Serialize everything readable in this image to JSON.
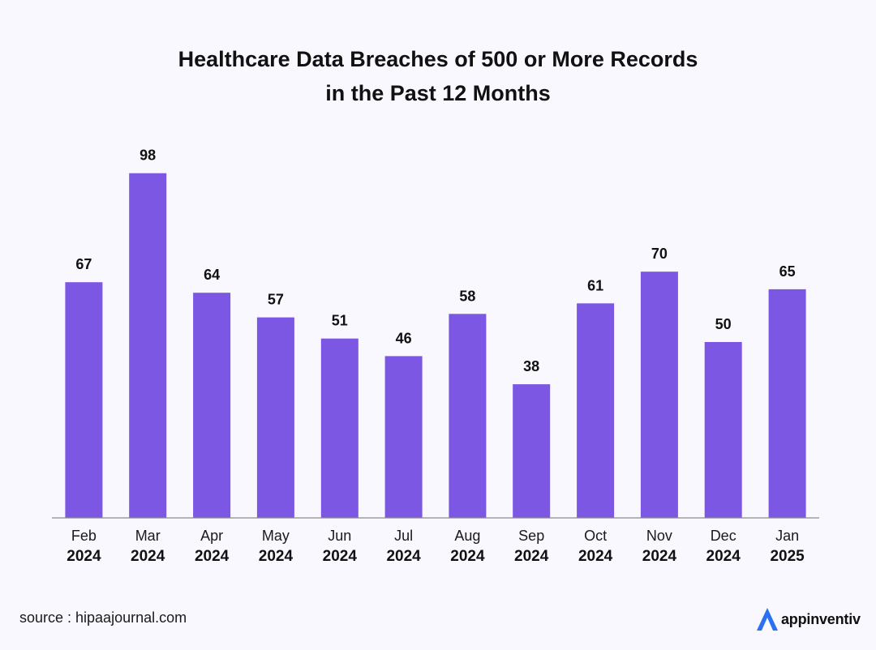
{
  "title_lines": [
    "Healthcare Data Breaches of 500 or More Records",
    "in the Past 12 Months"
  ],
  "source": "source : hipaajournal.com",
  "brand": {
    "name": "appinventiv",
    "icon": "appinventiv-logo-icon",
    "color": "#2b6ff3"
  },
  "colors": {
    "bar": "#7b57e4",
    "axis": "#8a8a8a",
    "background": "#f8f8fe"
  },
  "chart_data": {
    "type": "bar",
    "title": "Healthcare Data Breaches of 500 or More Records in the Past 12 Months",
    "xlabel": "",
    "ylabel": "",
    "ylim": [
      0,
      100
    ],
    "grid": false,
    "legend": "none",
    "categories": [
      {
        "month": "Feb",
        "year": "2024"
      },
      {
        "month": "Mar",
        "year": "2024"
      },
      {
        "month": "Apr",
        "year": "2024"
      },
      {
        "month": "May",
        "year": "2024"
      },
      {
        "month": "Jun",
        "year": "2024"
      },
      {
        "month": "Jul",
        "year": "2024"
      },
      {
        "month": "Aug",
        "year": "2024"
      },
      {
        "month": "Sep",
        "year": "2024"
      },
      {
        "month": "Oct",
        "year": "2024"
      },
      {
        "month": "Nov",
        "year": "2024"
      },
      {
        "month": "Dec",
        "year": "2024"
      },
      {
        "month": "Jan",
        "year": "2025"
      }
    ],
    "values": [
      67,
      98,
      64,
      57,
      51,
      46,
      58,
      38,
      61,
      70,
      50,
      65
    ]
  }
}
